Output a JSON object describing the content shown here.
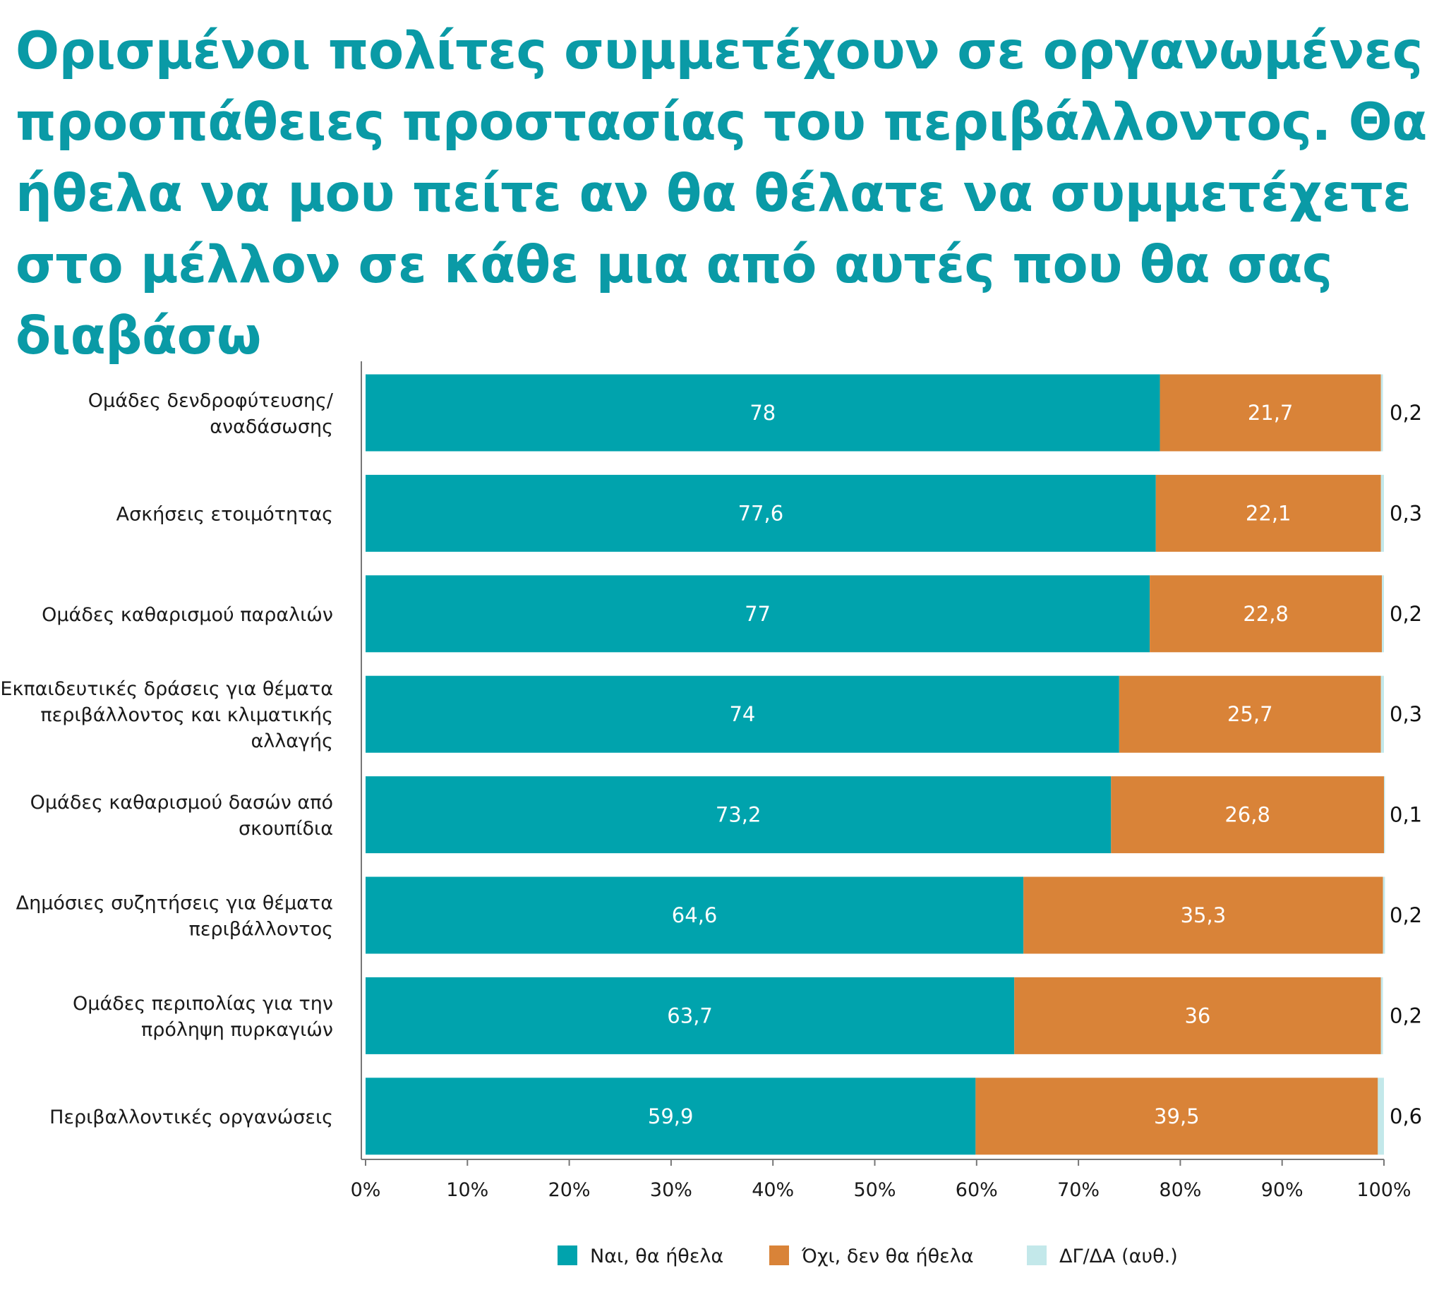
{
  "chart_data": {
    "type": "bar",
    "orientation": "horizontal",
    "stacked": true,
    "title": "Ορισμένοι πολίτες συμμετέχουν σε οργανωμένες προσπάθειες προστασίας του περιβάλλοντος. Θα ήθελα να μου πείτε αν θα θέλατε να συμμετέχετε στο μέλλον σε κάθε μια από αυτές που θα σας διαβάσω",
    "categories": [
      [
        "Ομάδες δενδροφύτευσης/",
        "αναδάσωσης"
      ],
      [
        "Ασκήσεις ετοιμότητας"
      ],
      [
        "Ομάδες καθαρισμού παραλιών"
      ],
      [
        "Εκπαιδευτικές δράσεις για θέματα",
        "περιβάλλοντος και κλιματικής",
        "αλλαγής"
      ],
      [
        "Ομάδες καθαρισμού δασών από",
        "σκουπίδια"
      ],
      [
        "Δημόσιες συζητήσεις για θέματα",
        "περιβάλλοντος"
      ],
      [
        "Ομάδες περιπολίας για την",
        "πρόληψη πυρκαγιών"
      ],
      [
        "Περιβαλλοντικές οργανώσεις"
      ]
    ],
    "series": [
      {
        "name": "Ναι, θα ήθελα",
        "color": "#00a3ad",
        "values": [
          78,
          77.6,
          77,
          74,
          73.2,
          64.6,
          63.7,
          59.9
        ],
        "labels": [
          "78",
          "77,6",
          "77",
          "74",
          "73,2",
          "64,6",
          "63,7",
          "59,9"
        ]
      },
      {
        "name": "Όχι, δεν θα ήθελα",
        "color": "#d98338",
        "values": [
          21.7,
          22.1,
          22.8,
          25.7,
          26.8,
          35.3,
          36,
          39.5
        ],
        "labels": [
          "21,7",
          "22,1",
          "22,8",
          "25,7",
          "26,8",
          "35,3",
          "36",
          "39,5"
        ]
      },
      {
        "name": "ΔΓ/ΔΑ (αυθ.)",
        "color": "#c3e8ea",
        "values": [
          0.2,
          0.3,
          0.2,
          0.3,
          0.1,
          0.2,
          0.2,
          0.6
        ],
        "labels": [
          "0,2",
          "0,3",
          "0,2",
          "0,3",
          "0,1",
          "0,2",
          "0,2",
          "0,6"
        ]
      }
    ],
    "xlim": [
      0,
      100
    ],
    "xticks": [
      0,
      10,
      20,
      30,
      40,
      50,
      60,
      70,
      80,
      90,
      100
    ],
    "xtick_labels": [
      "0%",
      "10%",
      "20%",
      "30%",
      "40%",
      "50%",
      "60%",
      "70%",
      "80%",
      "90%",
      "100%"
    ],
    "grid": false,
    "legend_position": "bottom-center"
  }
}
